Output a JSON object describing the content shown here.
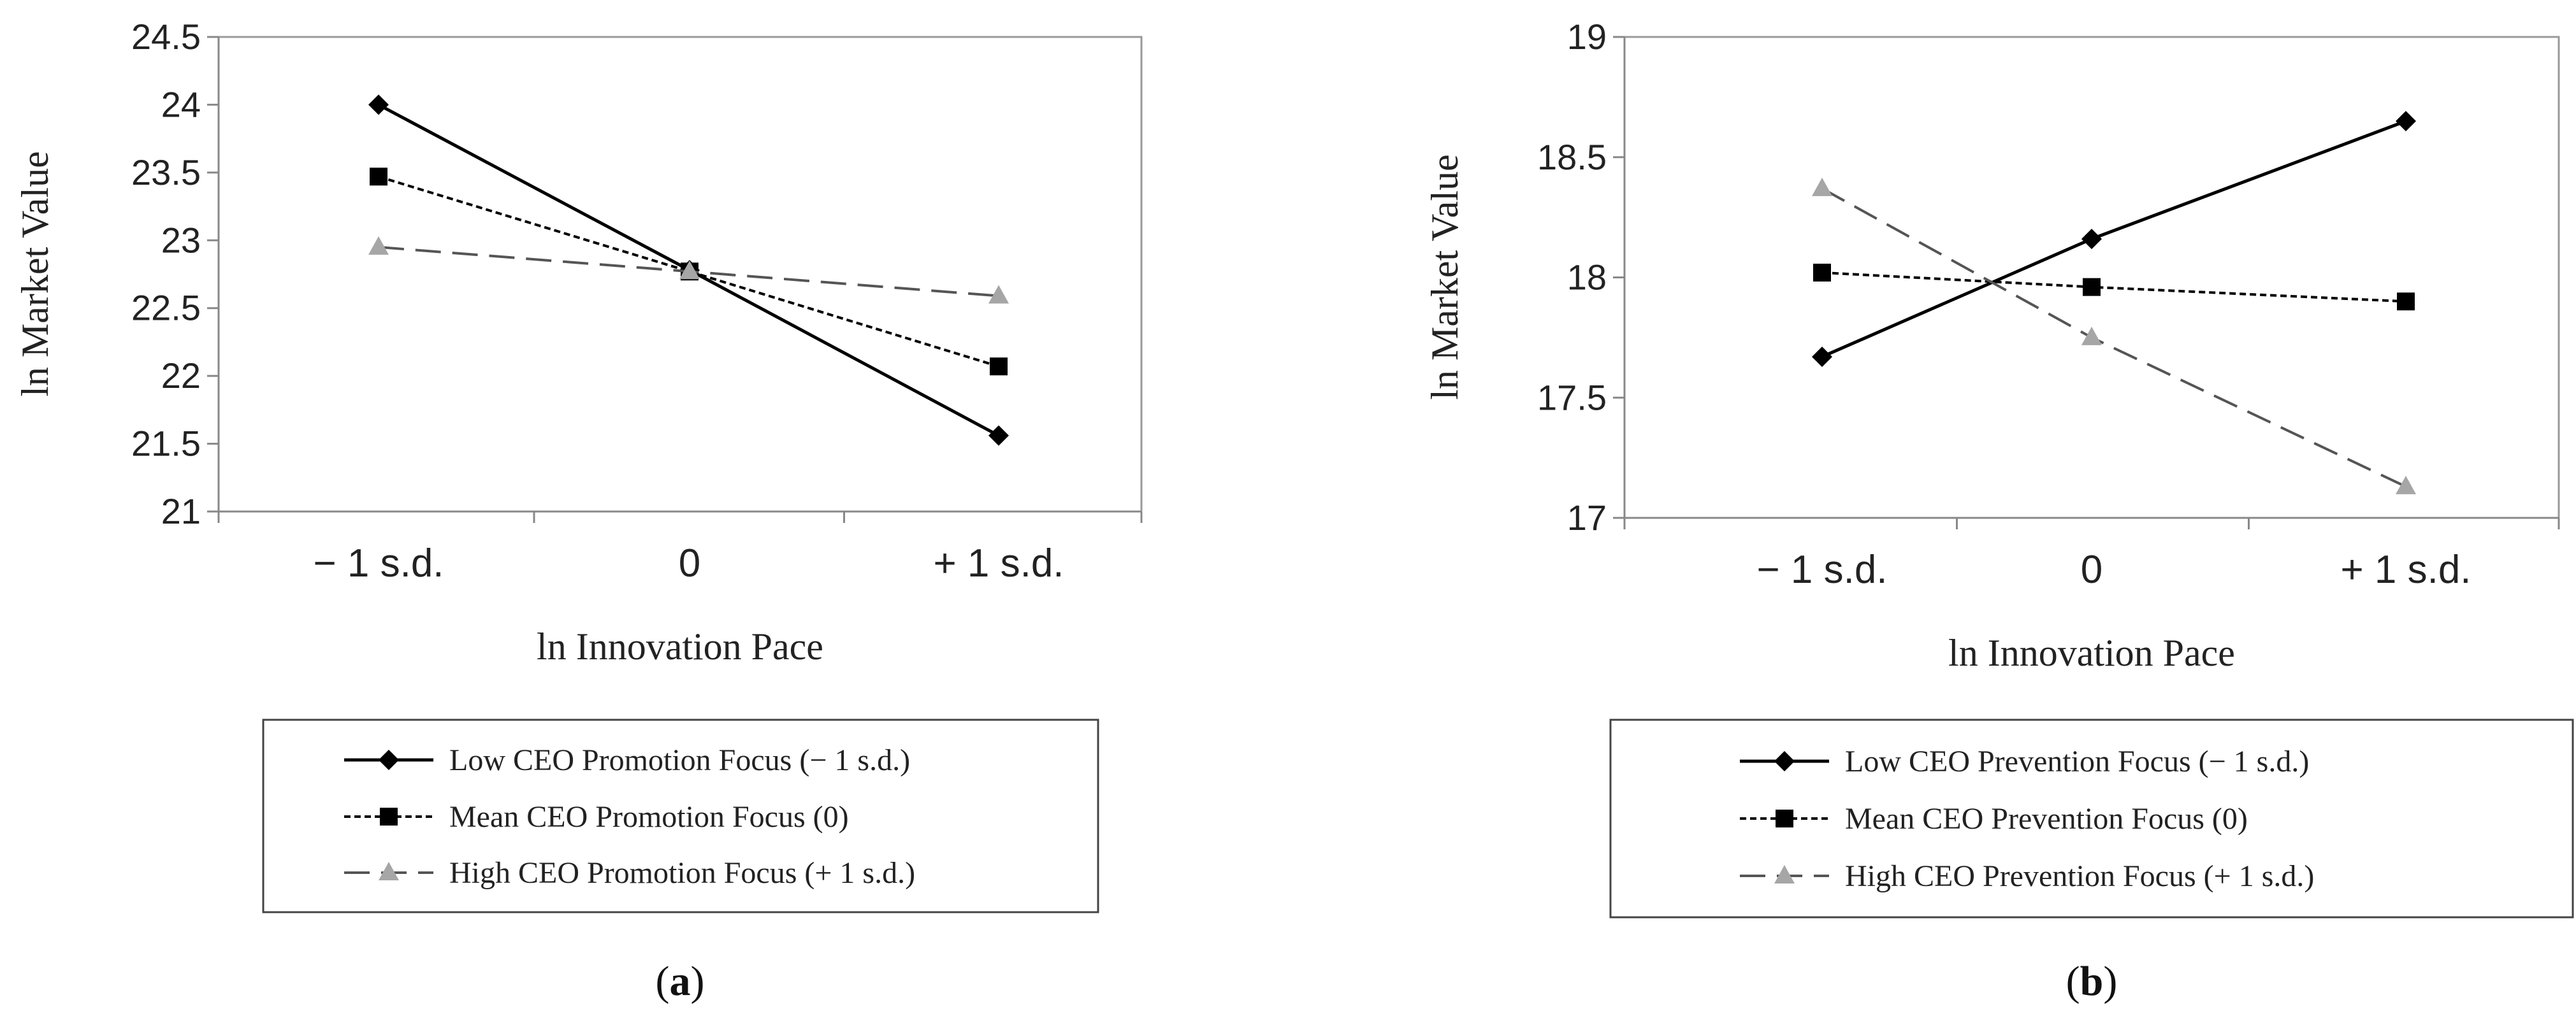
{
  "chart_data": [
    {
      "type": "line",
      "panel_label": "a",
      "xlabel": "ln Innovation Pace",
      "ylabel": "ln Market Value",
      "categories": [
        "− 1 s.d.",
        "0",
        "+ 1 s.d."
      ],
      "ylim": [
        21,
        24.5
      ],
      "yticks": [
        "21",
        "21.5",
        "22",
        "22.5",
        "23",
        "23.5",
        "24",
        "24.5"
      ],
      "grid": false,
      "legend_position": "bottom",
      "series": [
        {
          "name": "Low CEO Promotion Focus (− 1 s.d.)",
          "values": [
            24.0,
            22.78,
            21.56
          ],
          "marker": "diamond",
          "dash": "solid",
          "color": "#000000"
        },
        {
          "name": "Mean CEO Promotion Focus (0)",
          "values": [
            23.47,
            22.77,
            22.07
          ],
          "marker": "square",
          "dash": "dotted",
          "color": "#000000"
        },
        {
          "name": "High CEO Promotion Focus (+ 1 s.d.)",
          "values": [
            22.95,
            22.77,
            22.59
          ],
          "marker": "triangle",
          "dash": "dashed",
          "color": "#808080"
        }
      ]
    },
    {
      "type": "line",
      "panel_label": "b",
      "xlabel": "ln Innovation Pace",
      "ylabel": "ln Market Value",
      "categories": [
        "− 1 s.d.",
        "0",
        "+ 1 s.d."
      ],
      "ylim": [
        17,
        19
      ],
      "yticks": [
        "17",
        "17.5",
        "18",
        "18.5",
        "19"
      ],
      "grid": false,
      "legend_position": "bottom",
      "series": [
        {
          "name": "Low CEO Prevention Focus (− 1 s.d.)",
          "values": [
            17.67,
            18.16,
            18.65
          ],
          "marker": "diamond",
          "dash": "solid",
          "color": "#000000"
        },
        {
          "name": "Mean CEO Prevention Focus (0)",
          "values": [
            18.02,
            17.96,
            17.9
          ],
          "marker": "square",
          "dash": "dotted",
          "color": "#000000"
        },
        {
          "name": "High CEO Prevention Focus (+ 1 s.d.)",
          "values": [
            18.37,
            17.75,
            17.13
          ],
          "marker": "triangle",
          "dash": "dashed",
          "color": "#808080"
        }
      ]
    }
  ]
}
